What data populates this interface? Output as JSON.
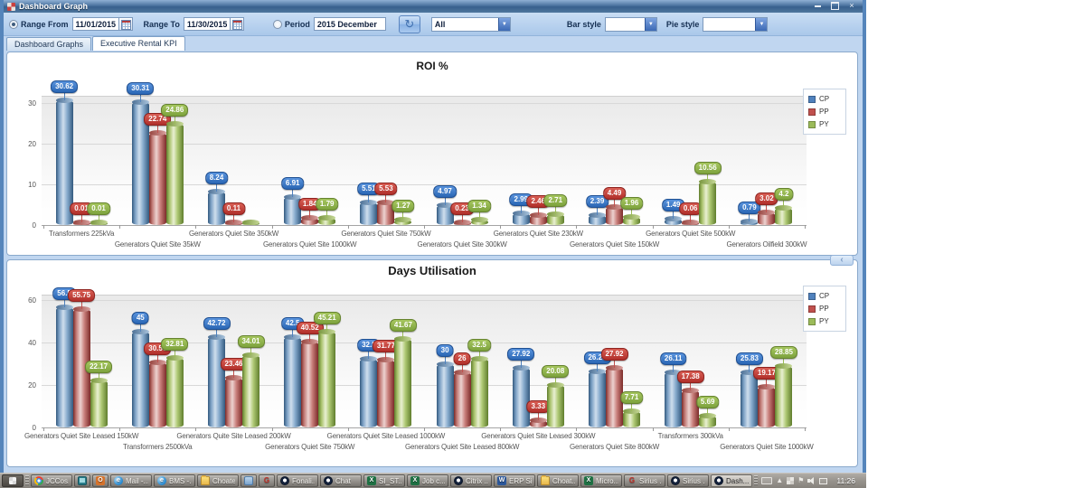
{
  "window": {
    "title": "Dashboard Graph"
  },
  "toolbar": {
    "range_from_label": "Range From",
    "range_from_value": "11/01/2015",
    "range_to_label": "Range To",
    "range_to_value": "11/30/2015",
    "period_label": "Period",
    "period_value": "2015 December",
    "filter_selected": "All",
    "bar_style_label": "Bar style",
    "bar_style_value": "",
    "pie_style_label": "Pie style",
    "pie_style_value": "",
    "refresh_glyph": "↻"
  },
  "tabs": [
    {
      "label": "Dashboard Graphs",
      "active": false
    },
    {
      "label": "Executive Rental KPI",
      "active": true
    }
  ],
  "legend": [
    "CP",
    "PP",
    "PY"
  ],
  "series_colors": {
    "CP": "#4f81bd",
    "PP": "#c0504d",
    "PY": "#9bbb59"
  },
  "splitter_collapse_glyph": "‹",
  "chart_data": [
    {
      "type": "bar",
      "title": "ROI %",
      "xlabel": "",
      "ylabel": "",
      "ylim": [
        0,
        32
      ],
      "yticks": [
        0,
        10,
        20,
        30
      ],
      "grid": true,
      "legend_position": "top-right",
      "legend_entries": [
        "CP",
        "PP",
        "PY"
      ],
      "categories": [
        "Transformers 225kVa",
        "Generators Quiet Site 35kW",
        "Generators Quiet Site 350kW",
        "Generators Quiet Site 1000kW",
        "Generators Quiet Site 750kW",
        "Generators Quiet Site 300kW",
        "Generators Quiet Site 230kW",
        "Generators Quiet Site 150kW",
        "Generators Quiet Site 500kW",
        "Generators Oilfield 300kW"
      ],
      "series": [
        {
          "name": "CP",
          "values": [
            30.62,
            30.31,
            8.24,
            6.91,
            5.51,
            4.97,
            2.99,
            2.39,
            1.49,
            0.79
          ],
          "labels": [
            "30.62",
            "30.31",
            "8.24",
            "6.91",
            "5.51",
            "4.97",
            "2.99",
            "2.39",
            "1.49",
            "0.79"
          ]
        },
        {
          "name": "PP",
          "values": [
            0.01,
            22.74,
            0.11,
            1.84,
            5.53,
            0.23,
            2.46,
            4.49,
            0.06,
            3.02
          ],
          "labels": [
            "0.01",
            "22.74",
            "0.11",
            "1.84",
            "5.53",
            "0.23",
            "2.46",
            "4.49",
            "0.06",
            "3.02"
          ]
        },
        {
          "name": "PY",
          "values": [
            0.01,
            24.86,
            0.1,
            1.79,
            1.27,
            1.34,
            2.71,
            1.96,
            10.56,
            4.2
          ],
          "labels": [
            "0.01",
            "24.86",
            "",
            "1.79",
            "1.27",
            "1.34",
            "2.71",
            "1.96",
            "10.56",
            "4.2"
          ]
        }
      ]
    },
    {
      "type": "bar",
      "title": "Days Utilisation",
      "xlabel": "",
      "ylabel": "",
      "ylim": [
        0,
        62
      ],
      "yticks": [
        0,
        20,
        40,
        60
      ],
      "grid": true,
      "legend_position": "top-right",
      "legend_entries": [
        "CP",
        "PP",
        "PY"
      ],
      "categories": [
        "Generators Quiet Site Leased 150kW",
        "Transformers 2500kVa",
        "Generators Quite Site Leased 200kW",
        "Generators Quiet Site 750kW",
        "Generators Quiet Site Leased 1000kW",
        "Generators Quiet Site Leased 800kW",
        "Generators Quiet Site Leased 300kW",
        "Generators Quiet Site 800kW",
        "Transformers 300kVa",
        "Generators Quiet Site 1000kW"
      ],
      "series": [
        {
          "name": "CP",
          "values": [
            56.5,
            45,
            42.72,
            42.5,
            32.5,
            30,
            27.92,
            26.25,
            26.11,
            25.83
          ],
          "labels": [
            "56.5",
            "45",
            "42.72",
            "42.5",
            "32.5",
            "30",
            "27.92",
            "26.25",
            "26.11",
            "25.83"
          ]
        },
        {
          "name": "PP",
          "values": [
            55.75,
            30.56,
            23.46,
            40.52,
            31.77,
            26,
            3.33,
            27.92,
            17.38,
            19.17
          ],
          "labels": [
            "55.75",
            "30.56",
            "23.46",
            "40.52",
            "31.77",
            "26",
            "3.33",
            "27.92",
            "17.38",
            "19.17"
          ]
        },
        {
          "name": "PY",
          "values": [
            22.17,
            32.81,
            34.01,
            45.21,
            41.67,
            32.5,
            20.08,
            7.71,
            5.69,
            28.85
          ],
          "labels": [
            "22.17",
            "32.81",
            "34.01",
            "45.21",
            "41.67",
            "32.5",
            "20.08",
            "7.71",
            "5.69",
            "28.85"
          ]
        }
      ]
    }
  ],
  "taskbar": {
    "clock": "11:26",
    "items": [
      {
        "icon": "chrome-icon",
        "label": "JCCos...",
        "active": false
      },
      {
        "icon": "remote-desktop-icon",
        "label": "",
        "active": false
      },
      {
        "icon": "outlook-icon",
        "label": "",
        "active": false
      },
      {
        "icon": "ie-icon",
        "label": "Mail -...",
        "active": false
      },
      {
        "icon": "ie-icon",
        "label": "BMS -...",
        "active": false
      },
      {
        "icon": "folder-icon",
        "label": "Choate",
        "active": false
      },
      {
        "icon": "app-window-icon",
        "label": "",
        "active": false
      },
      {
        "icon": "red-app-icon",
        "label": "",
        "active": false
      },
      {
        "icon": "citrix-icon",
        "label": "Fonali...",
        "active": false
      },
      {
        "icon": "citrix-icon",
        "label": "Chat",
        "active": false
      },
      {
        "icon": "excel-icon",
        "label": "SI_ST...",
        "active": false
      },
      {
        "icon": "excel-icon",
        "label": "Job c...",
        "active": false
      },
      {
        "icon": "citrix-icon",
        "label": "Citrix ...",
        "active": false
      },
      {
        "icon": "word-icon",
        "label": "ERP Si...",
        "active": false
      },
      {
        "icon": "folder-icon",
        "label": "Choat...",
        "active": false
      },
      {
        "icon": "excel-icon",
        "label": "Micro...",
        "active": false
      },
      {
        "icon": "red-app-icon",
        "label": "Sirius ...",
        "active": false
      },
      {
        "icon": "citrix-icon",
        "label": "Sirius ...",
        "active": false
      },
      {
        "icon": "citrix-icon",
        "label": "Dash...",
        "active": true
      }
    ]
  }
}
